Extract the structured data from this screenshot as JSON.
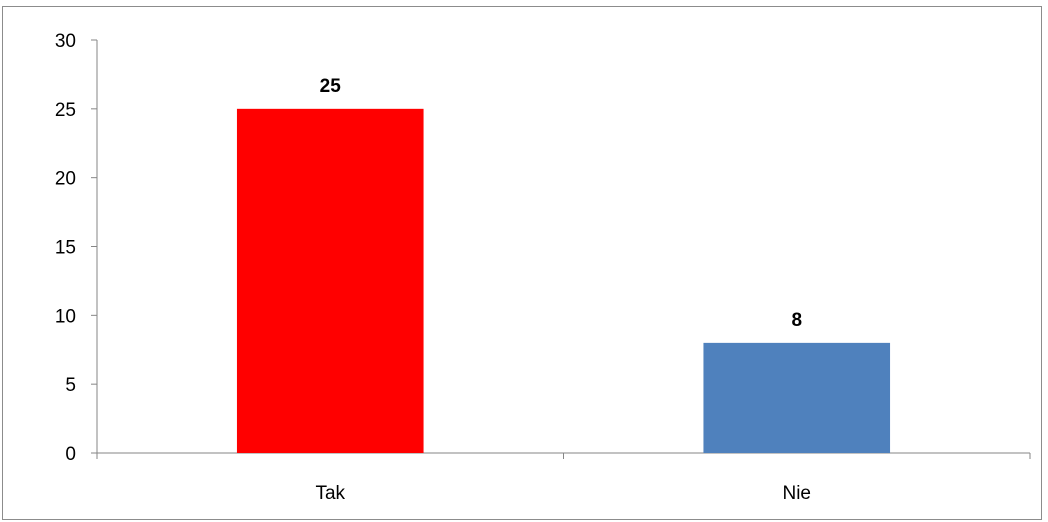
{
  "chart_data": {
    "type": "bar",
    "categories": [
      "Tak",
      "Nie"
    ],
    "values": [
      25,
      8
    ],
    "colors": [
      "#ff0000",
      "#4f81bd"
    ],
    "data_labels": [
      "25",
      "8"
    ],
    "title": "",
    "xlabel": "",
    "ylabel": "",
    "ylim": [
      0,
      30
    ],
    "yticks": [
      0,
      5,
      10,
      15,
      20,
      25,
      30
    ],
    "ytick_labels": [
      "0",
      "5",
      "10",
      "15",
      "20",
      "25",
      "30"
    ],
    "grid": false,
    "legend": "none"
  }
}
